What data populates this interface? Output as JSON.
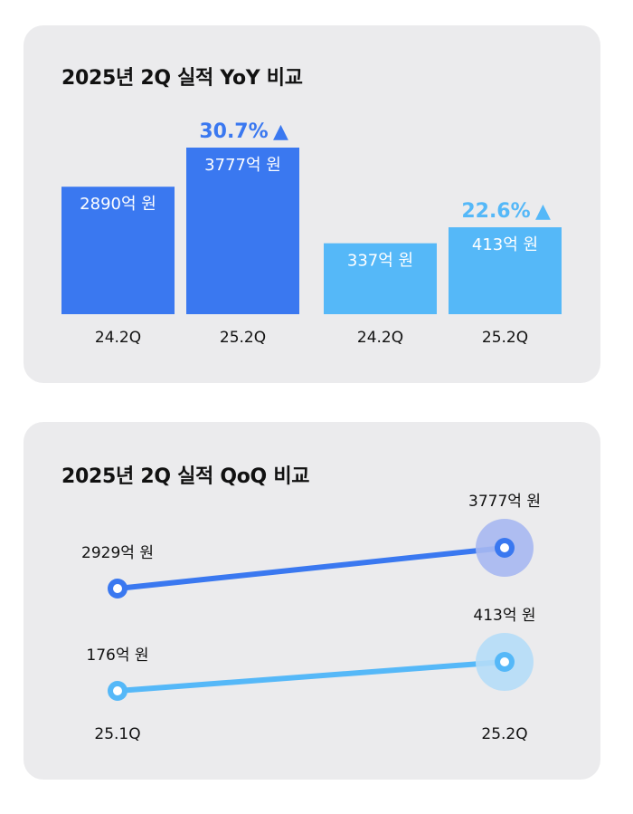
{
  "colors": {
    "card_bg": "#ebebed",
    "blue": "#3a78f0",
    "sky": "#55b8f8",
    "blue_halo": "#a7b8f1",
    "sky_halo": "#b5ddf7",
    "text": "#111111"
  },
  "chart_data": [
    {
      "type": "bar",
      "title": "2025년 2Q 실적 YoY 비교",
      "groups": [
        {
          "color": "#3a78f0",
          "bars": [
            {
              "category": "24.2Q",
              "value": 2890,
              "label": "2890억 원"
            },
            {
              "category": "25.2Q",
              "value": 3777,
              "label": "3777억 원"
            }
          ],
          "growth": {
            "text": "30.7%",
            "arrow": "▲"
          }
        },
        {
          "color": "#55b8f8",
          "bars": [
            {
              "category": "24.2Q",
              "value": 337,
              "label": "337억 원"
            },
            {
              "category": "25.2Q",
              "value": 413,
              "label": "413억 원"
            }
          ],
          "growth": {
            "text": "22.6%",
            "arrow": "▲"
          }
        }
      ]
    },
    {
      "type": "line",
      "title": "2025년 2Q 실적 QoQ 비교",
      "categories": [
        "25.1Q",
        "25.2Q"
      ],
      "series": [
        {
          "color": "#3a78f0",
          "halo": "#a7b8f1",
          "values": [
            2929,
            3777
          ],
          "labels": [
            "2929억 원",
            "3777억 원"
          ]
        },
        {
          "color": "#55b8f8",
          "halo": "#b5ddf7",
          "values": [
            176,
            413
          ],
          "labels": [
            "176억 원",
            "413억 원"
          ]
        }
      ]
    }
  ]
}
